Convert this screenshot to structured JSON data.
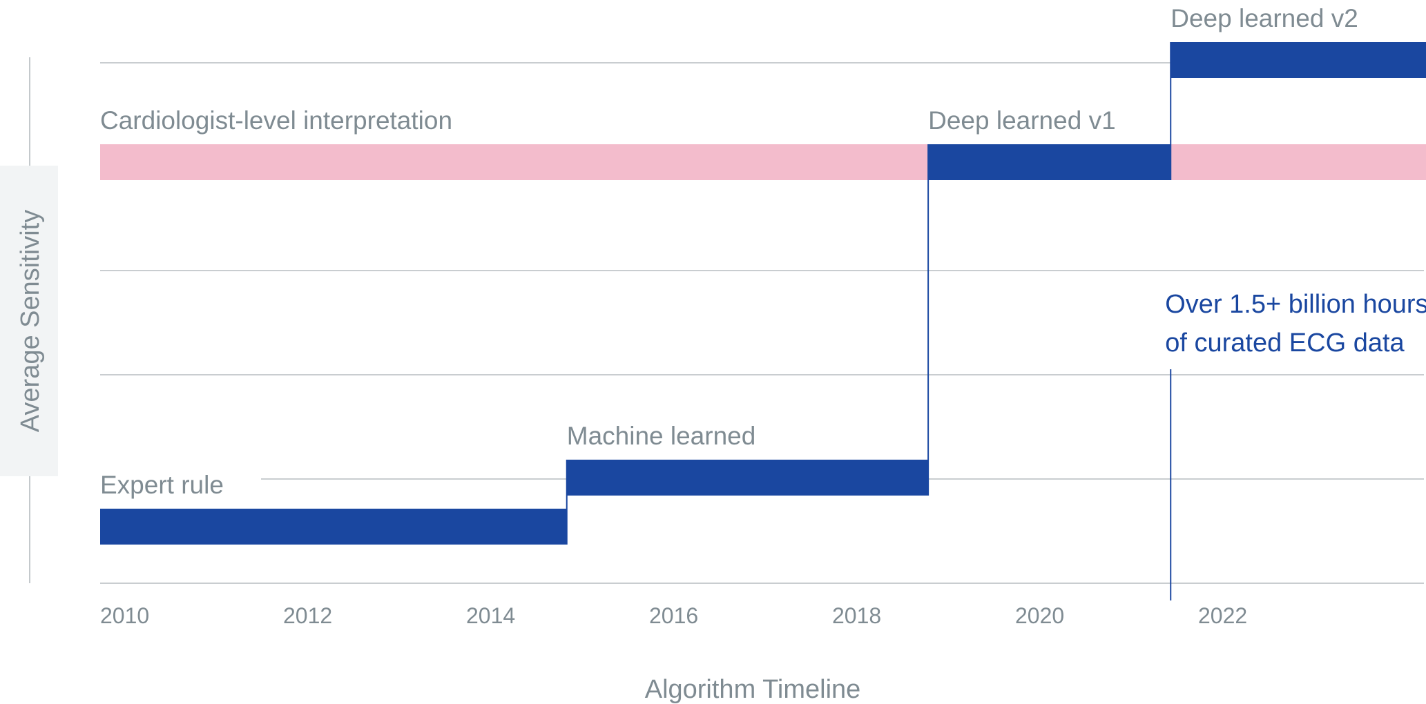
{
  "chart_data": {
    "type": "step",
    "xlabel": "Algorithm Timeline",
    "ylabel": "Average Sensitivity",
    "x_ticks": [
      "2010",
      "2012",
      "2014",
      "2016",
      "2018",
      "2020",
      "2022"
    ],
    "xlim": [
      2010,
      2024.5
    ],
    "grid": true,
    "reference_band": {
      "label": "Cardiologist-level interpretation",
      "x_start": 2010,
      "x_end": 2024.5,
      "level": 4.0,
      "color": "#f3bccc"
    },
    "steps": [
      {
        "label": "Expert rule",
        "x_start": 2010,
        "x_end": 2015.1,
        "level": 0.55
      },
      {
        "label": "Machine learned",
        "x_start": 2015.1,
        "x_end": 2019.05,
        "level": 1.0
      },
      {
        "label": "Deep learned v1",
        "x_start": 2019.05,
        "x_end": 2021.7,
        "level": 4.0
      },
      {
        "label": "Deep learned v2",
        "x_start": 2021.7,
        "x_end": 2024.5,
        "level": 5.0
      }
    ],
    "step_color": "#1a47a0",
    "annotation": {
      "lines": [
        "Over 1.5+ billion hours",
        "of curated ECG data"
      ],
      "x": 2021.7,
      "color": "#1a47a0"
    }
  }
}
